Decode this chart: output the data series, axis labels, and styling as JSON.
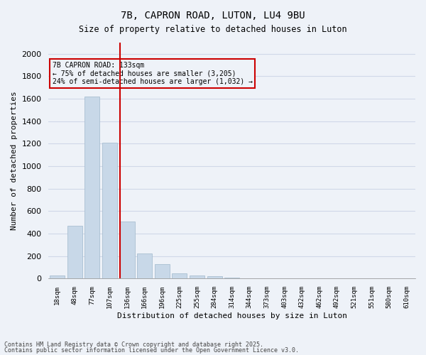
{
  "title_line1": "7B, CAPRON ROAD, LUTON, LU4 9BU",
  "title_line2": "Size of property relative to detached houses in Luton",
  "xlabel": "Distribution of detached houses by size in Luton",
  "ylabel": "Number of detached properties",
  "categories": [
    "18sqm",
    "48sqm",
    "77sqm",
    "107sqm",
    "136sqm",
    "166sqm",
    "196sqm",
    "225sqm",
    "255sqm",
    "284sqm",
    "314sqm",
    "344sqm",
    "373sqm",
    "403sqm",
    "432sqm",
    "462sqm",
    "492sqm",
    "521sqm",
    "551sqm",
    "580sqm",
    "610sqm"
  ],
  "values": [
    30,
    470,
    1620,
    1210,
    510,
    225,
    130,
    50,
    30,
    20,
    10,
    0,
    0,
    0,
    0,
    0,
    0,
    0,
    0,
    0,
    0
  ],
  "bar_color": "#c8d8e8",
  "bar_edgecolor": "#a0b8cc",
  "vline_x": 4,
  "vline_color": "#cc0000",
  "annotation_text": "7B CAPRON ROAD: 133sqm\n← 75% of detached houses are smaller (3,205)\n24% of semi-detached houses are larger (1,032) →",
  "annotation_box_color": "#cc0000",
  "annotation_text_color": "#000000",
  "ylim": [
    0,
    2100
  ],
  "yticks": [
    0,
    200,
    400,
    600,
    800,
    1000,
    1200,
    1400,
    1600,
    1800,
    2000
  ],
  "grid_color": "#d0d8e8",
  "background_color": "#eef2f8",
  "footnote1": "Contains HM Land Registry data © Crown copyright and database right 2025.",
  "footnote2": "Contains public sector information licensed under the Open Government Licence v3.0."
}
